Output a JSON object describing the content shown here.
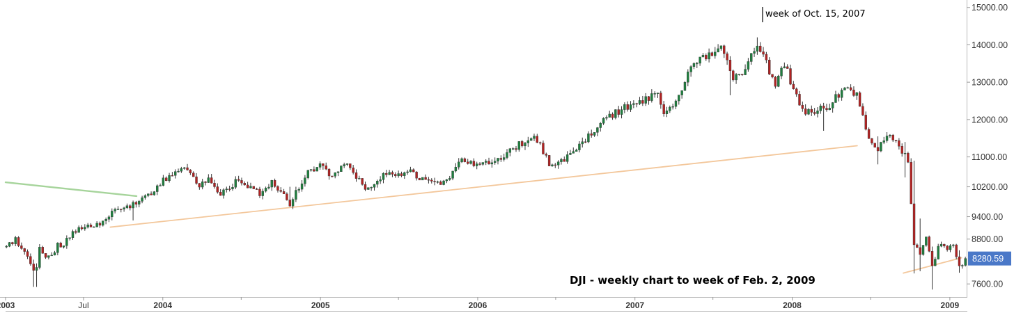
{
  "chart_data": {
    "type": "candlestick",
    "title": "DJI - weekly chart to week of Feb. 2, 2009",
    "annotation": "week of Oct. 15, 2007",
    "last_price": "8280.59",
    "ylim": [
      7250,
      15200
    ],
    "y_ticks": [
      "7600.00",
      "8800.00",
      "9400.00",
      "10200.00",
      "11000.00",
      "12000.00",
      "13000.00",
      "14000.00",
      "15000.00"
    ],
    "y_tick_values": [
      7600,
      8800,
      9400,
      10200,
      11000,
      12000,
      13000,
      14000,
      15000
    ],
    "x_range": [
      "2003-01-01",
      "2009-02-09"
    ],
    "x_ticks": [
      "2003",
      "Jul",
      "2004",
      "2005",
      "2006",
      "2007",
      "2008",
      "2009"
    ],
    "x_tick_dates": [
      "2003-01-01",
      "2003-07-01",
      "2004-01-01",
      "2005-01-01",
      "2006-01-01",
      "2007-01-01",
      "2008-01-01",
      "2009-01-01"
    ],
    "x_minor_tick_dates": [
      "2004-07-01",
      "2005-07-01",
      "2006-07-01",
      "2007-07-01",
      "2008-07-01"
    ],
    "x_bold_ticks": [
      "2003",
      "2004",
      "2005",
      "2006",
      "2007",
      "2008",
      "2009"
    ],
    "grid": false,
    "colors": {
      "up": "#1f7f3f",
      "down": "#b22222",
      "wick": "#333333",
      "trendline": "#f3c79b",
      "resistance": "#a6d49b",
      "last_label": "#4a78c8"
    },
    "trendlines": [
      {
        "name": "resistance",
        "color": "#a6d49b",
        "from": [
          "2003-01-01",
          10320
        ],
        "to": [
          "2003-11-01",
          9950
        ]
      },
      {
        "name": "support",
        "color": "#f3c79b",
        "from": [
          "2003-09-01",
          9120
        ],
        "to": [
          "2008-05-31",
          11300
        ]
      },
      {
        "name": "support",
        "color": "#f3c79b",
        "from": [
          "2008-09-15",
          7890
        ],
        "to": [
          "2009-01-28",
          8300
        ]
      }
    ],
    "anchors": [
      [
        "2003-01-03",
        8600
      ],
      [
        "2003-01-24",
        8750
      ],
      [
        "2003-02-14",
        8450
      ],
      [
        "2003-03-07",
        8050
      ],
      [
        "2003-03-14",
        7950
      ],
      [
        "2003-03-21",
        8500
      ],
      [
        "2003-04-11",
        8300
      ],
      [
        "2003-05-02",
        8600
      ],
      [
        "2003-05-30",
        8850
      ],
      [
        "2003-06-20",
        9100
      ],
      [
        "2003-07-11",
        9150
      ],
      [
        "2003-08-08",
        9200
      ],
      [
        "2003-09-05",
        9500
      ],
      [
        "2003-10-03",
        9600
      ],
      [
        "2003-11-07",
        9800
      ],
      [
        "2003-12-05",
        10000
      ],
      [
        "2004-01-02",
        10400
      ],
      [
        "2004-02-13",
        10650
      ],
      [
        "2004-03-05",
        10600
      ],
      [
        "2004-03-26",
        10200
      ],
      [
        "2004-04-16",
        10450
      ],
      [
        "2004-05-14",
        10000
      ],
      [
        "2004-06-25",
        10400
      ],
      [
        "2004-08-13",
        10000
      ],
      [
        "2004-09-10",
        10300
      ],
      [
        "2004-10-22",
        9750
      ],
      [
        "2004-11-26",
        10500
      ],
      [
        "2004-12-31",
        10800
      ],
      [
        "2005-01-28",
        10450
      ],
      [
        "2005-03-04",
        10900
      ],
      [
        "2005-04-15",
        10100
      ],
      [
        "2005-05-27",
        10500
      ],
      [
        "2005-07-29",
        10600
      ],
      [
        "2005-08-26",
        10400
      ],
      [
        "2005-10-14",
        10300
      ],
      [
        "2005-11-25",
        10900
      ],
      [
        "2005-12-30",
        10750
      ],
      [
        "2006-03-03",
        11050
      ],
      [
        "2006-05-12",
        11600
      ],
      [
        "2006-06-16",
        10800
      ],
      [
        "2006-07-14",
        10850
      ],
      [
        "2006-08-25",
        11300
      ],
      [
        "2006-10-20",
        12000
      ],
      [
        "2006-12-29",
        12450
      ],
      [
        "2007-02-23",
        12650
      ],
      [
        "2007-03-09",
        12200
      ],
      [
        "2007-03-30",
        12300
      ],
      [
        "2007-05-04",
        13200
      ],
      [
        "2007-06-01",
        13650
      ],
      [
        "2007-07-20",
        13900
      ],
      [
        "2007-08-17",
        13100
      ],
      [
        "2007-09-07",
        13300
      ],
      [
        "2007-10-12",
        14050
      ],
      [
        "2007-11-02",
        13500
      ],
      [
        "2007-11-23",
        12900
      ],
      [
        "2007-12-14",
        13500
      ],
      [
        "2008-01-11",
        12600
      ],
      [
        "2008-01-25",
        12200
      ],
      [
        "2008-03-21",
        12300
      ],
      [
        "2008-05-02",
        12850
      ],
      [
        "2008-05-30",
        12650
      ],
      [
        "2008-06-27",
        11400
      ],
      [
        "2008-07-18",
        11200
      ],
      [
        "2008-08-15",
        11650
      ],
      [
        "2008-09-05",
        11250
      ],
      [
        "2008-09-26",
        10900
      ],
      [
        "2008-10-10",
        8700
      ],
      [
        "2008-10-24",
        8400
      ],
      [
        "2008-11-07",
        8900
      ],
      [
        "2008-11-21",
        8050
      ],
      [
        "2008-12-05",
        8600
      ],
      [
        "2008-12-26",
        8500
      ],
      [
        "2009-01-09",
        8600
      ],
      [
        "2009-01-23",
        8100
      ],
      [
        "2009-02-06",
        8280
      ]
    ],
    "events": [
      {
        "date": "2003-03-07",
        "low": 7520,
        "high": 8250
      },
      {
        "date": "2003-03-14",
        "low": 7520,
        "high": 8150
      },
      {
        "date": "2003-10-24",
        "low": 9300,
        "high": 9780
      },
      {
        "date": "2004-10-22",
        "low": 9680,
        "high": 10200
      },
      {
        "date": "2007-08-10",
        "low": 12650,
        "high": 13650
      },
      {
        "date": "2007-10-12",
        "low": 13850,
        "high": 14200
      },
      {
        "date": "2008-03-14",
        "low": 11700,
        "high": 12400
      },
      {
        "date": "2008-07-18",
        "low": 10800,
        "high": 11550
      },
      {
        "date": "2008-09-19",
        "low": 10450,
        "high": 11400
      },
      {
        "date": "2008-10-10",
        "low": 7880,
        "high": 10900
      },
      {
        "date": "2008-10-24",
        "low": 7940,
        "high": 9350
      },
      {
        "date": "2008-11-21",
        "low": 7450,
        "high": 8600
      },
      {
        "date": "2009-01-23",
        "low": 7900,
        "high": 8500
      }
    ]
  }
}
